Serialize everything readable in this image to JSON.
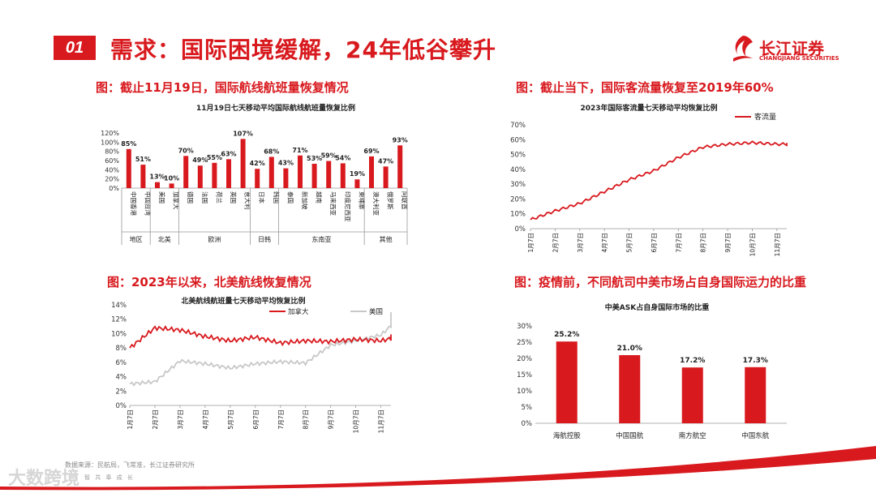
{
  "header": {
    "badge": "01",
    "title": "需求：国际困境缓解，24年低谷攀升",
    "logo_cn": "长江证券",
    "logo_en": "CHANGJIANG SECURITIES"
  },
  "colors": {
    "accent": "#d8191e",
    "gray_line": "#c8c8c8"
  },
  "panels": {
    "p1_title": "图：截止11月19日，国际航线航班量恢复情况",
    "p2_title": "图：截止当下，国际客流量恢复至2019年60%",
    "p3_title": "图：2023年以来，北美航线恢复情况",
    "p4_title": "图：疫情前，不同航司中美市场占自身国际运力的比重"
  },
  "footer": {
    "source": "数据来源：民航局，飞常准，长江证券研究所",
    "motto": "智 共 奉 成 长",
    "watermark": "大数跨境"
  },
  "chart_data": [
    {
      "type": "bar",
      "title": "11月19日七天移动平均国际航线航班量恢复比例",
      "categories": [
        "中国香港",
        "中国台湾",
        "美国",
        "加拿大",
        "德国",
        "法国",
        "荷兰",
        "英国",
        "意大利",
        "日本",
        "韩国",
        "泰国",
        "新加坡",
        "越南",
        "马来西亚",
        "印度尼西亚",
        "柬埔寨",
        "澳大利亚",
        "俄罗斯",
        "阿联酋"
      ],
      "values": [
        85,
        51,
        13,
        10,
        70,
        49,
        55,
        63,
        107,
        42,
        68,
        43,
        71,
        53,
        59,
        54,
        19,
        69,
        47,
        93
      ],
      "value_labels": [
        "85%",
        "51%",
        "13%",
        "10%",
        "70%",
        "49%",
        "55%",
        "63%",
        "107%",
        "42%",
        "68%",
        "43%",
        "71%",
        "53%",
        "59%",
        "54%",
        "19%",
        "69%",
        "47%",
        "93%"
      ],
      "groups": [
        {
          "name": "地区",
          "count": 2
        },
        {
          "name": "北美",
          "count": 2
        },
        {
          "name": "欧洲",
          "count": 5
        },
        {
          "name": "日韩",
          "count": 2
        },
        {
          "name": "东南亚",
          "count": 6
        },
        {
          "name": "其他",
          "count": 3
        }
      ],
      "yticks": [
        "0%",
        "20%",
        "40%",
        "60%",
        "80%",
        "100%",
        "120%"
      ],
      "ylim": [
        0,
        120
      ]
    },
    {
      "type": "line",
      "title": "2023年国际客流量七天移动平均恢复比例",
      "series": [
        {
          "name": "客流量",
          "x": [
            "1月7日",
            "2月7日",
            "3月7日",
            "4月7日",
            "5月7日",
            "6月7日",
            "7月7日",
            "8月7日",
            "9月7日",
            "10月7日",
            "11月7日",
            "11月19日"
          ],
          "values": [
            6,
            12,
            17,
            25,
            33,
            39,
            48,
            55,
            57,
            58,
            57,
            57
          ]
        }
      ],
      "xticks": [
        "1月7日",
        "2月7日",
        "3月7日",
        "4月7日",
        "5月7日",
        "6月7日",
        "7月7日",
        "8月7日",
        "9月7日",
        "10月7日",
        "11月7日"
      ],
      "yticks": [
        "0%",
        "10%",
        "20%",
        "30%",
        "40%",
        "50%",
        "60%",
        "70%"
      ],
      "ylim": [
        0,
        70
      ]
    },
    {
      "type": "line",
      "title": "北美航线航班量七天移动平均恢复比例",
      "series": [
        {
          "name": "加拿大",
          "x": [
            "1月7日",
            "2月7日",
            "3月7日",
            "4月7日",
            "5月7日",
            "6月7日",
            "7月7日",
            "8月7日",
            "9月7日",
            "10月7日",
            "11月7日",
            "11月19日"
          ],
          "values": [
            8,
            10.8,
            10.5,
            9.6,
            9.0,
            9.5,
            8.7,
            9.0,
            8.9,
            9.2,
            9.0,
            9.8
          ]
        },
        {
          "name": "美国",
          "x": [
            "1月7日",
            "2月7日",
            "3月7日",
            "4月7日",
            "5月7日",
            "6月7日",
            "7月7日",
            "8月7日",
            "9月7日",
            "10月7日",
            "11月7日",
            "11月19日"
          ],
          "values": [
            3,
            3.3,
            6.2,
            5.8,
            5.2,
            5.8,
            6.1,
            5.9,
            8.4,
            9.0,
            9.8,
            13
          ]
        }
      ],
      "xticks": [
        "1月7日",
        "2月7日",
        "3月7日",
        "4月7日",
        "5月7日",
        "6月7日",
        "7月7日",
        "8月7日",
        "9月7日",
        "10月7日",
        "11月7日"
      ],
      "yticks": [
        "0%",
        "2%",
        "4%",
        "6%",
        "8%",
        "10%",
        "12%",
        "14%"
      ],
      "ylim": [
        0,
        14
      ]
    },
    {
      "type": "bar",
      "title": "中美ASK占自身国际市场的比重",
      "categories": [
        "海航控股",
        "中国国航",
        "南方航空",
        "中国东航"
      ],
      "values": [
        25.2,
        21.0,
        17.2,
        17.3
      ],
      "value_labels": [
        "25.2%",
        "21.0%",
        "17.2%",
        "17.3%"
      ],
      "yticks": [
        "0%",
        "5%",
        "10%",
        "15%",
        "20%",
        "25%",
        "30%"
      ],
      "ylim": [
        0,
        30
      ]
    }
  ]
}
